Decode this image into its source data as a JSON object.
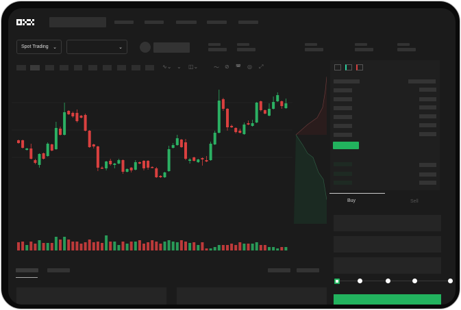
{
  "header": {
    "logo": "OKX"
  },
  "market_bar": {
    "mode_dropdown": "Spot Trading",
    "pair_dropdown": ""
  },
  "order_form": {
    "tabs": [
      "Buy",
      "Sell"
    ],
    "active_tab": "Buy",
    "leverage_slider_value": 0,
    "buy_color": "#22b35e"
  },
  "colors": {
    "up": "#2bb063",
    "down": "#d9403f",
    "background": "#1b1b1b"
  },
  "chart_data": {
    "type": "candlestick",
    "candles": [
      [
        97,
        98,
        92,
        93
      ],
      [
        97,
        98,
        85,
        86
      ],
      [
        83,
        86,
        82,
        85
      ],
      [
        85,
        92,
        69,
        70
      ],
      [
        68,
        70,
        62,
        64
      ],
      [
        61,
        78,
        57,
        77
      ],
      [
        78,
        79,
        69,
        70
      ],
      [
        74,
        94,
        73,
        92
      ],
      [
        91,
        92,
        81,
        82
      ],
      [
        84,
        124,
        83,
        115
      ],
      [
        114,
        117,
        104,
        105
      ],
      [
        105,
        152,
        104,
        138
      ],
      [
        140,
        141,
        134,
        135
      ],
      [
        137,
        139,
        130,
        132
      ],
      [
        137,
        142,
        123,
        125
      ],
      [
        133,
        134,
        129,
        130
      ],
      [
        134,
        136,
        110,
        111
      ],
      [
        111,
        112,
        86,
        87
      ],
      [
        91,
        92,
        85,
        88
      ],
      [
        88,
        89,
        52,
        57
      ],
      [
        57,
        59,
        55,
        56
      ],
      [
        56,
        67,
        53,
        66
      ],
      [
        67,
        70,
        60,
        62
      ],
      [
        61,
        64,
        56,
        63
      ],
      [
        63,
        70,
        62,
        68
      ],
      [
        68,
        69,
        48,
        51
      ],
      [
        51,
        56,
        50,
        55
      ],
      [
        57,
        58,
        50,
        53
      ],
      [
        54,
        68,
        53,
        65
      ],
      [
        65,
        66,
        62,
        63
      ],
      [
        67,
        68,
        53,
        56
      ],
      [
        67,
        68,
        54,
        57
      ],
      [
        58,
        59,
        56,
        57
      ],
      [
        56,
        58,
        42,
        43
      ],
      [
        45,
        46,
        42,
        43
      ],
      [
        43,
        51,
        42,
        50
      ],
      [
        52,
        89,
        51,
        84
      ],
      [
        86,
        93,
        85,
        90
      ],
      [
        90,
        105,
        89,
        100
      ],
      [
        98,
        99,
        86,
        87
      ],
      [
        94,
        99,
        68,
        70
      ],
      [
        67,
        71,
        63,
        69
      ],
      [
        72,
        73,
        66,
        67
      ],
      [
        65,
        70,
        64,
        69
      ],
      [
        71,
        72,
        60,
        69
      ],
      [
        68,
        74,
        65,
        66
      ],
      [
        68,
        95,
        67,
        92
      ],
      [
        91,
        111,
        90,
        108
      ],
      [
        108,
        171,
        107,
        155
      ],
      [
        157,
        159,
        140,
        143
      ],
      [
        143,
        144,
        111,
        116
      ],
      [
        118,
        120,
        115,
        116
      ],
      [
        115,
        116,
        107,
        109
      ],
      [
        111,
        114,
        107,
        108
      ],
      [
        106,
        123,
        105,
        120
      ],
      [
        122,
        126,
        119,
        120
      ],
      [
        118,
        127,
        117,
        122
      ],
      [
        123,
        153,
        122,
        152
      ],
      [
        154,
        155,
        139,
        141
      ],
      [
        141,
        142,
        135,
        136
      ],
      [
        133,
        151,
        132,
        143
      ],
      [
        143,
        161,
        142,
        153
      ],
      [
        154,
        167,
        153,
        163
      ],
      [
        154,
        155,
        143,
        147
      ],
      [
        144,
        158,
        143,
        151
      ]
    ],
    "volume": [
      12,
      13,
      8,
      13,
      10,
      15,
      11,
      11,
      11,
      20,
      16,
      20,
      16,
      13,
      13,
      10,
      12,
      16,
      12,
      13,
      11,
      22,
      13,
      13,
      8,
      13,
      10,
      13,
      13,
      15,
      10,
      12,
      15,
      13,
      10,
      13,
      15,
      13,
      12,
      15,
      13,
      11,
      12,
      8,
      12,
      3,
      3,
      5,
      8,
      8,
      8,
      10,
      8,
      12,
      10,
      10,
      10,
      12,
      8,
      8,
      5,
      5,
      3,
      5,
      5
    ]
  }
}
